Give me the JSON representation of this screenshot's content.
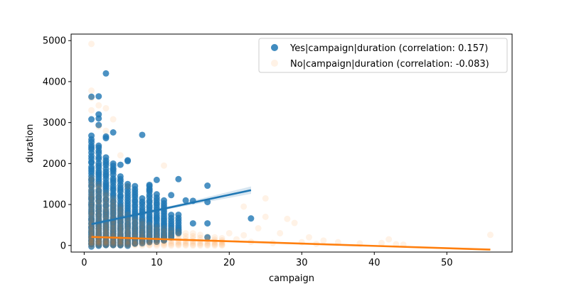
{
  "chart_data": {
    "type": "scatter",
    "xlabel": "campaign",
    "ylabel": "duration",
    "xlim": [
      -1.8,
      59.0
    ],
    "ylim": [
      -160,
      5160
    ],
    "xticks": [
      0,
      10,
      20,
      30,
      40,
      50
    ],
    "yticks": [
      0,
      1000,
      2000,
      3000,
      4000,
      5000
    ],
    "legend_position": "top-right",
    "grid": false,
    "series": [
      {
        "name": "Yes|campaign|duration (correlation: 0.157)",
        "color": "#1f77b4",
        "point_opacity": 0.8,
        "regression": {
          "x": [
            1,
            23
          ],
          "y": [
            520,
            1350
          ],
          "ci_halfwidth": [
            35,
            90
          ]
        },
        "stacks": [
          {
            "x": 1,
            "lo": 0,
            "hi": 2600
          },
          {
            "x": 2,
            "lo": 0,
            "hi": 2450
          },
          {
            "x": 3,
            "lo": 0,
            "hi": 2150
          },
          {
            "x": 4,
            "lo": 0,
            "hi": 2000
          },
          {
            "x": 5,
            "lo": 0,
            "hi": 1700
          },
          {
            "x": 6,
            "lo": 0,
            "hi": 1500
          },
          {
            "x": 7,
            "lo": 30,
            "hi": 1450
          },
          {
            "x": 8,
            "lo": 60,
            "hi": 1150
          },
          {
            "x": 9,
            "lo": 80,
            "hi": 1450
          },
          {
            "x": 10,
            "lo": 100,
            "hi": 1250
          },
          {
            "x": 11,
            "lo": 120,
            "hi": 1100
          },
          {
            "x": 12,
            "lo": 200,
            "hi": 750
          },
          {
            "x": 13,
            "lo": 300,
            "hi": 750
          }
        ],
        "points": [
          [
            1,
            3630
          ],
          [
            1,
            3080
          ],
          [
            1,
            2680
          ],
          [
            2,
            3640
          ],
          [
            2,
            3200
          ],
          [
            2,
            3100
          ],
          [
            2,
            2940
          ],
          [
            3,
            4200
          ],
          [
            3,
            2660
          ],
          [
            3,
            2620
          ],
          [
            4,
            2760
          ],
          [
            8,
            2700
          ],
          [
            6,
            2080
          ],
          [
            6,
            2060
          ],
          [
            5,
            1970
          ],
          [
            4,
            1850
          ],
          [
            10,
            1600
          ],
          [
            9,
            1480
          ],
          [
            9,
            1350
          ],
          [
            12,
            1230
          ],
          [
            13,
            1620
          ],
          [
            14,
            1100
          ],
          [
            15,
            1090
          ],
          [
            17,
            1460
          ],
          [
            17,
            1060
          ],
          [
            15,
            540
          ],
          [
            17,
            540
          ],
          [
            17,
            200
          ],
          [
            23,
            660
          ]
        ]
      },
      {
        "name": "No|campaign|duration (correlation: -0.083)",
        "color": "#ff7f0e",
        "point_opacity": 0.1,
        "regression": {
          "x": [
            1,
            56
          ],
          "y": [
            210,
            -100
          ],
          "ci_halfwidth": [
            8,
            25
          ]
        },
        "stacks": [
          {
            "x": 1,
            "lo": 0,
            "hi": 1650
          },
          {
            "x": 2,
            "lo": 0,
            "hi": 1500
          },
          {
            "x": 3,
            "lo": 0,
            "hi": 1300
          },
          {
            "x": 4,
            "lo": 0,
            "hi": 1150
          },
          {
            "x": 5,
            "lo": 0,
            "hi": 950
          },
          {
            "x": 6,
            "lo": 0,
            "hi": 750
          },
          {
            "x": 7,
            "lo": 0,
            "hi": 650
          },
          {
            "x": 8,
            "lo": 0,
            "hi": 600
          },
          {
            "x": 9,
            "lo": 0,
            "hi": 500
          },
          {
            "x": 10,
            "lo": 0,
            "hi": 450
          },
          {
            "x": 11,
            "lo": 0,
            "hi": 420
          },
          {
            "x": 12,
            "lo": 0,
            "hi": 380
          },
          {
            "x": 13,
            "lo": 0,
            "hi": 340
          },
          {
            "x": 14,
            "lo": 0,
            "hi": 300
          },
          {
            "x": 15,
            "lo": 0,
            "hi": 300
          },
          {
            "x": 16,
            "lo": 0,
            "hi": 260
          },
          {
            "x": 17,
            "lo": 0,
            "hi": 220
          },
          {
            "x": 18,
            "lo": 0,
            "hi": 200
          },
          {
            "x": 19,
            "lo": 0,
            "hi": 180
          }
        ],
        "points": [
          [
            1,
            4920
          ],
          [
            1,
            3780
          ],
          [
            1,
            3600
          ],
          [
            1,
            3300
          ],
          [
            2,
            3420
          ],
          [
            2,
            2900
          ],
          [
            3,
            3350
          ],
          [
            3,
            2800
          ],
          [
            4,
            3080
          ],
          [
            5,
            2200
          ],
          [
            11,
            1950
          ],
          [
            6,
            1450
          ],
          [
            22,
            950
          ],
          [
            25,
            1150
          ],
          [
            25,
            700
          ],
          [
            28,
            650
          ],
          [
            29,
            550
          ],
          [
            24,
            420
          ],
          [
            27,
            300
          ],
          [
            31,
            200
          ],
          [
            33,
            120
          ],
          [
            35,
            80
          ],
          [
            38,
            50
          ],
          [
            41,
            60
          ],
          [
            42,
            150
          ],
          [
            43,
            30
          ],
          [
            44,
            20
          ],
          [
            56,
            260
          ],
          [
            21,
            150
          ],
          [
            23,
            90
          ],
          [
            26,
            60
          ],
          [
            30,
            80
          ],
          [
            32,
            40
          ],
          [
            20,
            300
          ],
          [
            22,
            250
          ]
        ]
      }
    ]
  }
}
